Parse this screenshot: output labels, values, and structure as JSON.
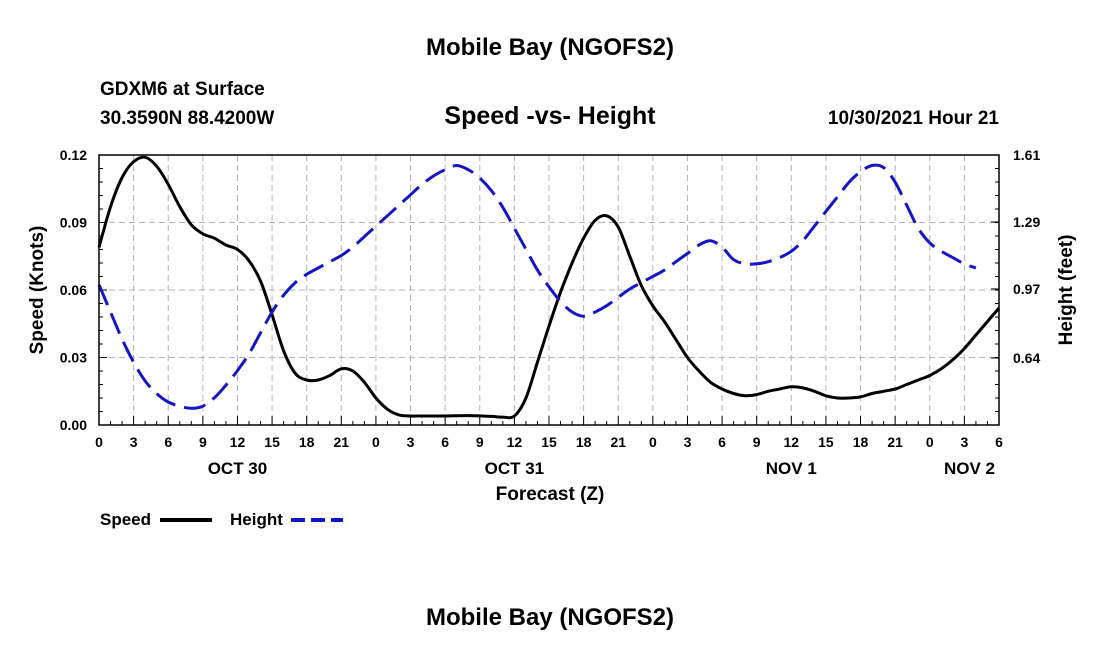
{
  "header": {
    "title": "Mobile Bay (NGOFS2)",
    "station": "GDXM6 at Surface",
    "coords": "30.3590N  88.4200W",
    "subtitle": "Speed -vs- Height",
    "datetime": "10/30/2021 Hour 21"
  },
  "footer": {
    "title": "Mobile Bay (NGOFS2)"
  },
  "legend": {
    "items": [
      {
        "label": "Speed",
        "color": "#000000"
      },
      {
        "label": "Height",
        "color": "#1515c8"
      }
    ]
  },
  "chart_data": {
    "type": "line",
    "xlabel": "Forecast (Z)",
    "ylabel_left": "Speed (Knots)",
    "ylabel_right": "Height (feet)",
    "x_range_hours": [
      0,
      78
    ],
    "x_tick_labels": [
      "0",
      "3",
      "6",
      "9",
      "12",
      "15",
      "18",
      "21",
      "0",
      "3",
      "6",
      "9",
      "12",
      "15",
      "18",
      "21",
      "0",
      "3",
      "6",
      "9",
      "12",
      "15",
      "18",
      "21",
      "0",
      "3",
      "6"
    ],
    "date_labels": [
      {
        "label": "OCT 30",
        "hour": 12
      },
      {
        "label": "OCT 31",
        "hour": 36
      },
      {
        "label": "NOV 1",
        "hour": 60
      },
      {
        "label": "NOV 2",
        "hour": 78
      }
    ],
    "y_left": {
      "min": 0,
      "max": 0.12,
      "ticks": [
        "0.00",
        "0.03",
        "0.06",
        "0.09",
        "0.12"
      ]
    },
    "y_right": {
      "min": 0.32,
      "max": 1.61,
      "ticks": [
        "0.64",
        "0.97",
        "1.29",
        "1.61"
      ]
    },
    "grid": true,
    "series": [
      {
        "name": "Speed",
        "axis": "left",
        "color": "#000000",
        "dash": "solid",
        "points": [
          [
            0,
            0.079
          ],
          [
            1,
            0.097
          ],
          [
            2,
            0.11
          ],
          [
            3,
            0.117
          ],
          [
            4,
            0.119
          ],
          [
            5,
            0.115
          ],
          [
            6,
            0.107
          ],
          [
            7,
            0.097
          ],
          [
            8,
            0.089
          ],
          [
            9,
            0.085
          ],
          [
            10,
            0.083
          ],
          [
            11,
            0.08
          ],
          [
            12,
            0.078
          ],
          [
            13,
            0.073
          ],
          [
            14,
            0.064
          ],
          [
            15,
            0.049
          ],
          [
            16,
            0.033
          ],
          [
            17,
            0.023
          ],
          [
            18,
            0.02
          ],
          [
            19,
            0.02
          ],
          [
            20,
            0.022
          ],
          [
            21,
            0.025
          ],
          [
            22,
            0.024
          ],
          [
            23,
            0.019
          ],
          [
            24,
            0.012
          ],
          [
            25,
            0.007
          ],
          [
            26,
            0.0045
          ],
          [
            27,
            0.004
          ],
          [
            28,
            0.004
          ],
          [
            30,
            0.004
          ],
          [
            32,
            0.0042
          ],
          [
            34,
            0.0038
          ],
          [
            35,
            0.0035
          ],
          [
            36,
            0.004
          ],
          [
            37,
            0.012
          ],
          [
            38,
            0.028
          ],
          [
            39,
            0.044
          ],
          [
            40,
            0.059
          ],
          [
            41,
            0.072
          ],
          [
            42,
            0.083
          ],
          [
            43,
            0.091
          ],
          [
            44,
            0.093
          ],
          [
            45,
            0.088
          ],
          [
            46,
            0.075
          ],
          [
            47,
            0.062
          ],
          [
            48,
            0.053
          ],
          [
            49,
            0.046
          ],
          [
            50,
            0.038
          ],
          [
            51,
            0.03
          ],
          [
            52,
            0.024
          ],
          [
            53,
            0.019
          ],
          [
            54,
            0.016
          ],
          [
            55,
            0.014
          ],
          [
            56,
            0.013
          ],
          [
            57,
            0.0135
          ],
          [
            58,
            0.015
          ],
          [
            59,
            0.016
          ],
          [
            60,
            0.017
          ],
          [
            61,
            0.0165
          ],
          [
            62,
            0.015
          ],
          [
            63,
            0.013
          ],
          [
            64,
            0.012
          ],
          [
            65,
            0.012
          ],
          [
            66,
            0.0125
          ],
          [
            67,
            0.014
          ],
          [
            68,
            0.015
          ],
          [
            69,
            0.016
          ],
          [
            70,
            0.018
          ],
          [
            71,
            0.02
          ],
          [
            72,
            0.022
          ],
          [
            73,
            0.025
          ],
          [
            74,
            0.029
          ],
          [
            75,
            0.034
          ],
          [
            76,
            0.04
          ],
          [
            77,
            0.046
          ],
          [
            78,
            0.052
          ]
        ]
      },
      {
        "name": "Height",
        "axis": "right",
        "color": "#1515c8",
        "dash": "dashed",
        "points": [
          [
            0,
            0.99
          ],
          [
            1,
            0.86
          ],
          [
            2,
            0.73
          ],
          [
            3,
            0.62
          ],
          [
            4,
            0.53
          ],
          [
            5,
            0.47
          ],
          [
            6,
            0.43
          ],
          [
            7,
            0.41
          ],
          [
            8,
            0.4
          ],
          [
            9,
            0.41
          ],
          [
            10,
            0.45
          ],
          [
            11,
            0.51
          ],
          [
            12,
            0.58
          ],
          [
            13,
            0.66
          ],
          [
            14,
            0.76
          ],
          [
            15,
            0.86
          ],
          [
            16,
            0.94
          ],
          [
            17,
            1.0
          ],
          [
            18,
            1.04
          ],
          [
            19,
            1.07
          ],
          [
            20,
            1.1
          ],
          [
            21,
            1.13
          ],
          [
            22,
            1.17
          ],
          [
            23,
            1.22
          ],
          [
            24,
            1.27
          ],
          [
            25,
            1.32
          ],
          [
            26,
            1.37
          ],
          [
            27,
            1.42
          ],
          [
            28,
            1.47
          ],
          [
            29,
            1.51
          ],
          [
            30,
            1.54
          ],
          [
            31,
            1.56
          ],
          [
            32,
            1.54
          ],
          [
            33,
            1.5
          ],
          [
            34,
            1.44
          ],
          [
            35,
            1.36
          ],
          [
            36,
            1.26
          ],
          [
            37,
            1.16
          ],
          [
            38,
            1.06
          ],
          [
            39,
            0.98
          ],
          [
            40,
            0.91
          ],
          [
            41,
            0.86
          ],
          [
            42,
            0.84
          ],
          [
            43,
            0.86
          ],
          [
            44,
            0.89
          ],
          [
            45,
            0.93
          ],
          [
            46,
            0.97
          ],
          [
            47,
            1.0
          ],
          [
            48,
            1.03
          ],
          [
            49,
            1.06
          ],
          [
            50,
            1.1
          ],
          [
            51,
            1.14
          ],
          [
            52,
            1.18
          ],
          [
            53,
            1.2
          ],
          [
            54,
            1.17
          ],
          [
            55,
            1.11
          ],
          [
            56,
            1.09
          ],
          [
            57,
            1.09
          ],
          [
            58,
            1.1
          ],
          [
            59,
            1.12
          ],
          [
            60,
            1.15
          ],
          [
            61,
            1.2
          ],
          [
            62,
            1.27
          ],
          [
            63,
            1.34
          ],
          [
            64,
            1.41
          ],
          [
            65,
            1.48
          ],
          [
            66,
            1.53
          ],
          [
            67,
            1.56
          ],
          [
            68,
            1.55
          ],
          [
            69,
            1.48
          ],
          [
            70,
            1.37
          ],
          [
            71,
            1.26
          ],
          [
            72,
            1.19
          ],
          [
            73,
            1.15
          ],
          [
            74,
            1.12
          ],
          [
            75,
            1.09
          ],
          [
            76,
            1.07
          ]
        ]
      }
    ]
  }
}
